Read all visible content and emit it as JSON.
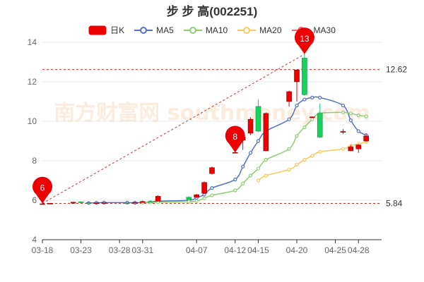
{
  "chart_data": {
    "type": "candlestick",
    "title": "步 步 高(002251)",
    "legend": [
      {
        "name": "日K",
        "color": "#ec0000",
        "marker": "candle"
      },
      {
        "name": "MA5",
        "color": "#5470c6",
        "marker": "line-circle"
      },
      {
        "name": "MA10",
        "color": "#91cc75",
        "marker": "line-circle"
      },
      {
        "name": "MA20",
        "color": "#fac858",
        "marker": "line-circle"
      },
      {
        "name": "MA30",
        "color": "#ee6666",
        "marker": "line-circle"
      }
    ],
    "up_color": "#ec0000",
    "down_color": "#14d45c",
    "ylim": [
      4,
      14
    ],
    "yticks": [
      "4",
      "6",
      "8",
      "10",
      "12",
      "14"
    ],
    "xlim": [
      "03-18",
      "05-01"
    ],
    "xticks": [
      "03-18",
      "03-23",
      "03-28",
      "03-31",
      "04-07",
      "04-12",
      "04-15",
      "04-20",
      "04-25",
      "04-28"
    ],
    "ohlc": [
      {
        "date": "03-18",
        "open": 5.8,
        "high": 5.84,
        "low": 5.78,
        "close": 5.82
      },
      {
        "date": "03-19",
        "open": 5.83,
        "high": 5.86,
        "low": 5.8,
        "close": 5.84
      },
      {
        "date": "03-22",
        "open": 5.85,
        "high": 5.92,
        "low": 5.83,
        "close": 5.9
      },
      {
        "date": "03-23",
        "open": 5.92,
        "high": 5.94,
        "low": 5.86,
        "close": 5.88
      },
      {
        "date": "03-24",
        "open": 5.88,
        "high": 5.92,
        "low": 5.85,
        "close": 5.86
      },
      {
        "date": "03-25",
        "open": 5.86,
        "high": 5.89,
        "low": 5.84,
        "close": 5.87
      },
      {
        "date": "03-26",
        "open": 5.87,
        "high": 5.9,
        "low": 5.85,
        "close": 5.88
      },
      {
        "date": "03-29",
        "open": 5.88,
        "high": 5.9,
        "low": 5.86,
        "close": 5.87
      },
      {
        "date": "03-30",
        "open": 5.87,
        "high": 5.9,
        "low": 5.85,
        "close": 5.89
      },
      {
        "date": "03-31",
        "open": 5.89,
        "high": 5.95,
        "low": 5.87,
        "close": 5.93
      },
      {
        "date": "04-01",
        "open": 5.93,
        "high": 5.97,
        "low": 5.9,
        "close": 5.92
      },
      {
        "date": "04-02",
        "open": 5.95,
        "high": 6.25,
        "low": 5.92,
        "close": 6.2
      },
      {
        "date": "04-06",
        "open": 6.15,
        "high": 6.2,
        "low": 6.02,
        "close": 6.05
      },
      {
        "date": "04-07",
        "open": 6.15,
        "high": 6.32,
        "low": 6.1,
        "close": 6.28
      },
      {
        "date": "04-08",
        "open": 6.35,
        "high": 6.95,
        "low": 6.3,
        "close": 6.9
      },
      {
        "date": "04-09",
        "open": 7.35,
        "high": 7.7,
        "low": 7.3,
        "close": 7.65
      },
      {
        "date": "04-12",
        "open": 8.4,
        "high": 8.45,
        "low": 8.38,
        "close": 8.42
      },
      {
        "date": "04-13",
        "open": 9.05,
        "high": 9.25,
        "low": 8.55,
        "close": 9.2
      },
      {
        "date": "04-14",
        "open": 9.4,
        "high": 10.2,
        "low": 9.3,
        "close": 10.1
      },
      {
        "date": "04-15",
        "open": 10.75,
        "high": 11.1,
        "low": 9.45,
        "close": 9.5
      },
      {
        "date": "04-16",
        "open": 8.5,
        "high": 10.45,
        "low": 8.5,
        "close": 10.4
      },
      {
        "date": "04-19",
        "open": 11.0,
        "high": 11.55,
        "low": 10.75,
        "close": 11.5
      },
      {
        "date": "04-20",
        "open": 12.0,
        "high": 12.62,
        "low": 11.0,
        "close": 12.6
      },
      {
        "date": "04-21",
        "open": 13.2,
        "high": 13.4,
        "low": 11.3,
        "close": 11.35
      },
      {
        "date": "04-22",
        "open": 10.2,
        "high": 10.25,
        "low": 10.18,
        "close": 10.22
      },
      {
        "date": "04-23",
        "open": 10.4,
        "high": 10.9,
        "low": 9.15,
        "close": 9.2
      },
      {
        "date": "04-26",
        "open": 9.45,
        "high": 9.6,
        "low": 9.35,
        "close": 9.48
      },
      {
        "date": "04-27",
        "open": 8.5,
        "high": 8.8,
        "low": 8.5,
        "close": 8.7
      },
      {
        "date": "04-28",
        "open": 8.6,
        "high": 8.85,
        "low": 8.4,
        "close": 8.8
      },
      {
        "date": "04-29",
        "open": 9.0,
        "high": 9.35,
        "low": 8.95,
        "close": 9.25
      }
    ],
    "series": [
      {
        "name": "MA5",
        "values": [
          null,
          null,
          null,
          null,
          5.86,
          5.87,
          5.88,
          5.88,
          5.87,
          5.89,
          5.9,
          5.95,
          6.0,
          6.12,
          6.29,
          6.62,
          7.05,
          7.7,
          8.4,
          9.0,
          9.5,
          10.1,
          10.8,
          11.1,
          11.2,
          11.2,
          10.8,
          10.05,
          9.5,
          9.3
        ]
      },
      {
        "name": "MA10",
        "values": [
          null,
          null,
          null,
          null,
          null,
          null,
          null,
          null,
          null,
          5.88,
          5.89,
          5.9,
          5.92,
          5.96,
          6.1,
          6.25,
          6.5,
          6.85,
          7.25,
          7.6,
          8.05,
          8.6,
          9.25,
          9.7,
          10.1,
          10.4,
          10.45,
          10.4,
          10.3,
          10.25
        ]
      },
      {
        "name": "MA20",
        "values": [
          null,
          null,
          null,
          null,
          null,
          null,
          null,
          null,
          null,
          null,
          null,
          null,
          null,
          null,
          null,
          null,
          null,
          null,
          null,
          7.0,
          7.25,
          7.55,
          7.8,
          8.05,
          8.25,
          8.45,
          8.6,
          8.75,
          8.85,
          8.95
        ]
      },
      {
        "name": "MA30",
        "values": []
      }
    ],
    "reference_lines": [
      {
        "value": 12.62,
        "label": "12.62",
        "color": "#c23531"
      },
      {
        "value": 5.84,
        "label": "5.84",
        "color": "#c23531"
      }
    ],
    "markers": [
      {
        "date": "03-18",
        "value": 5.84,
        "label": "6"
      },
      {
        "date": "04-12",
        "value": 8.42,
        "label": "8"
      },
      {
        "date": "04-21",
        "value": 13.4,
        "label": "13"
      }
    ],
    "watermark": "南方财富网 southmoney.com",
    "grid": true
  }
}
